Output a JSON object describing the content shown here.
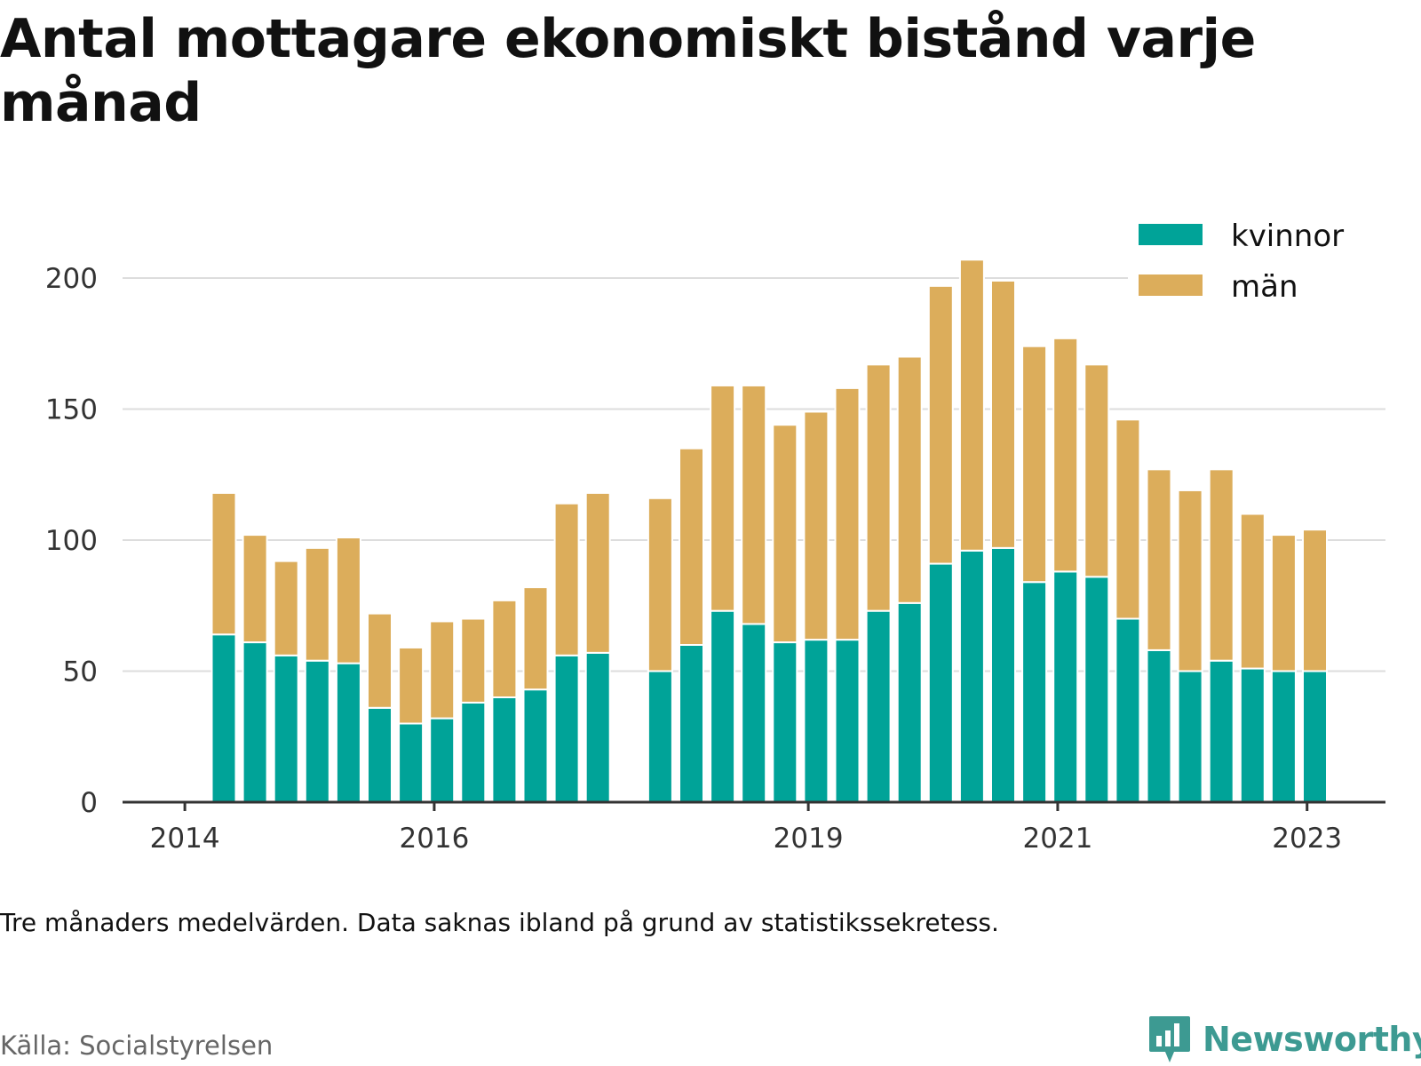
{
  "title": "Antal mottagare ekonomiskt bistånd varje månad",
  "note": "Tre månaders medelvärden. Data saknas ibland på grund av statistikssekretess.",
  "source": "Källa: Socialstyrelsen",
  "brand": "Newsworthy",
  "colors": {
    "kvinnor": "#00a398",
    "man": "#dcad5b",
    "grid": "#dddddd",
    "axis": "#333333",
    "brand": "#3d9a92"
  },
  "chart_data": {
    "type": "bar",
    "stacked": true,
    "x_tick_labels": [
      "2014",
      "2016",
      "2019",
      "2021",
      "2023"
    ],
    "yticks": [
      0,
      50,
      100,
      150,
      200
    ],
    "ylim": [
      0,
      215
    ],
    "grid": true,
    "legend_position": "top-right",
    "bars": [
      {
        "period": "2014-Q2",
        "kvinnor": 64,
        "man": 54
      },
      {
        "period": "2014-Q3",
        "kvinnor": 61,
        "man": 41
      },
      {
        "period": "2014-Q4",
        "kvinnor": 56,
        "man": 36
      },
      {
        "period": "2015-Q1",
        "kvinnor": 54,
        "man": 43
      },
      {
        "period": "2015-Q2",
        "kvinnor": 53,
        "man": 48
      },
      {
        "period": "2015-Q3",
        "kvinnor": 36,
        "man": 36
      },
      {
        "period": "2015-Q4",
        "kvinnor": 30,
        "man": 29
      },
      {
        "period": "2016-Q1",
        "kvinnor": 32,
        "man": 37
      },
      {
        "period": "2016-Q2",
        "kvinnor": 38,
        "man": 32
      },
      {
        "period": "2016-Q3",
        "kvinnor": 40,
        "man": 37
      },
      {
        "period": "2016-Q4",
        "kvinnor": 43,
        "man": 39
      },
      {
        "period": "2017-Q1",
        "kvinnor": 56,
        "man": 58
      },
      {
        "period": "2017-Q2",
        "kvinnor": 57,
        "man": 61
      },
      {
        "period": "2017-Q3",
        "kvinnor": null,
        "man": null
      },
      {
        "period": "2017-Q4",
        "kvinnor": 50,
        "man": 66
      },
      {
        "period": "2018-Q1",
        "kvinnor": 60,
        "man": 75
      },
      {
        "period": "2018-Q2",
        "kvinnor": 73,
        "man": 86
      },
      {
        "period": "2018-Q3",
        "kvinnor": 68,
        "man": 91
      },
      {
        "period": "2018-Q4",
        "kvinnor": 61,
        "man": 83
      },
      {
        "period": "2019-Q1",
        "kvinnor": 62,
        "man": 87
      },
      {
        "period": "2019-Q2",
        "kvinnor": 62,
        "man": 96
      },
      {
        "period": "2019-Q3",
        "kvinnor": 73,
        "man": 94
      },
      {
        "period": "2019-Q4",
        "kvinnor": 76,
        "man": 94
      },
      {
        "period": "2020-Q1",
        "kvinnor": 91,
        "man": 106
      },
      {
        "period": "2020-Q2",
        "kvinnor": 96,
        "man": 111
      },
      {
        "period": "2020-Q3",
        "kvinnor": 97,
        "man": 102
      },
      {
        "period": "2020-Q4",
        "kvinnor": 84,
        "man": 90
      },
      {
        "period": "2021-Q1",
        "kvinnor": 88,
        "man": 89
      },
      {
        "period": "2021-Q2",
        "kvinnor": 86,
        "man": 81
      },
      {
        "period": "2021-Q3",
        "kvinnor": 70,
        "man": 76
      },
      {
        "period": "2021-Q4",
        "kvinnor": 58,
        "man": 69
      },
      {
        "period": "2022-Q1",
        "kvinnor": 50,
        "man": 69
      },
      {
        "period": "2022-Q2",
        "kvinnor": 54,
        "man": 73
      },
      {
        "period": "2022-Q3",
        "kvinnor": 51,
        "man": 59
      },
      {
        "period": "2022-Q4",
        "kvinnor": 50,
        "man": 52
      },
      {
        "period": "2023-Q1",
        "kvinnor": 50,
        "man": 54
      }
    ],
    "series": [
      {
        "key": "kvinnor",
        "name": "kvinnor"
      },
      {
        "key": "man",
        "name": "män"
      }
    ]
  }
}
